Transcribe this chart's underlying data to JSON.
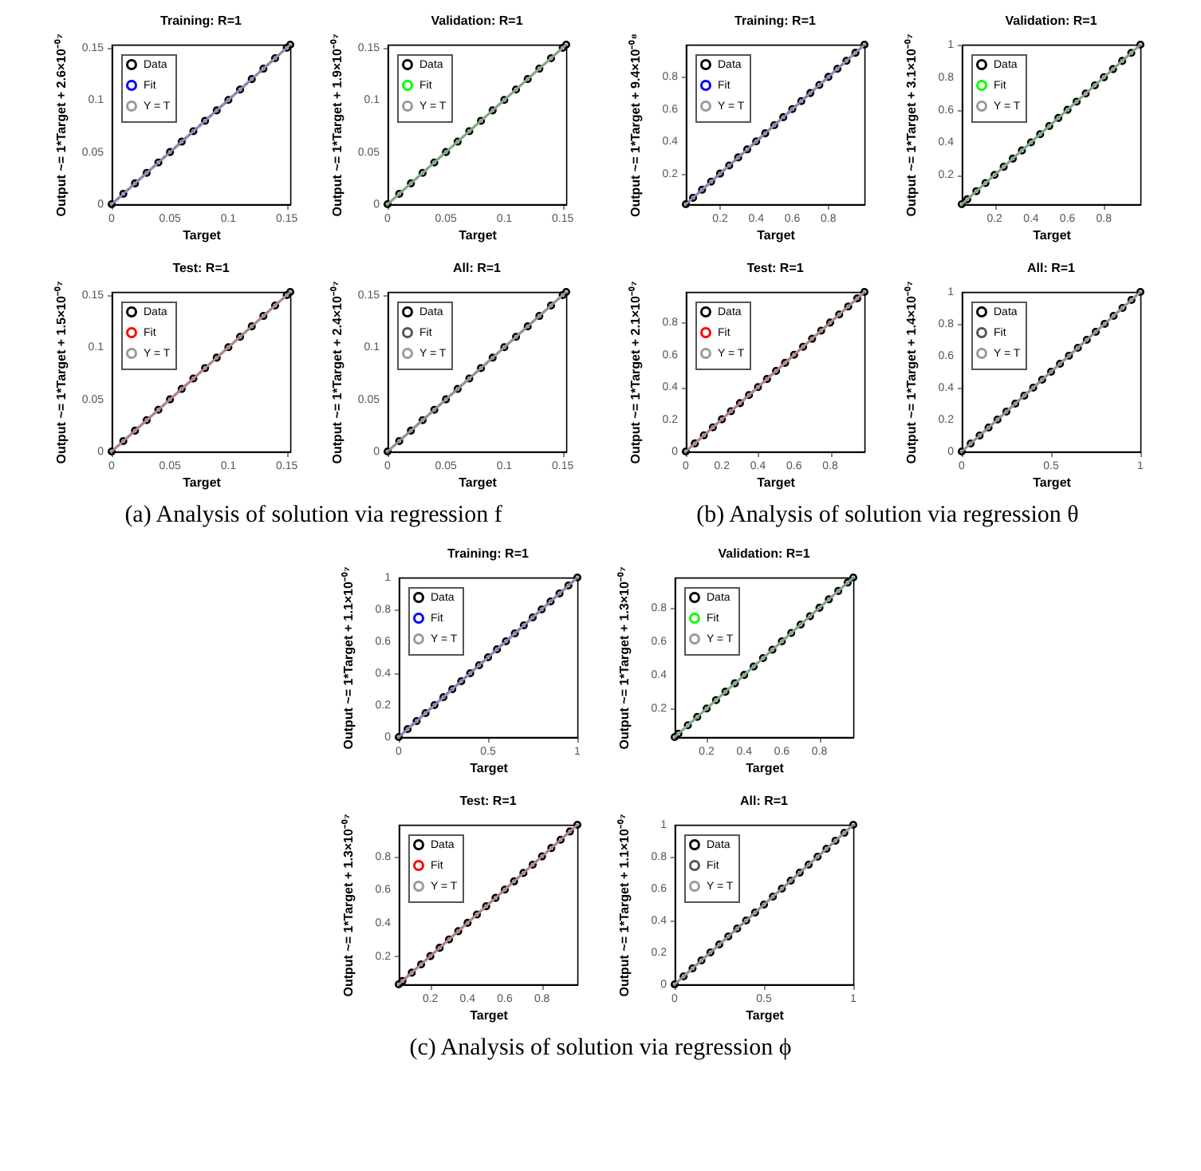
{
  "chart_data": [
    {
      "type": "scatter",
      "title": "Training: R=1",
      "xlabel": "Target",
      "ylabel": "Output ~= 1*Target + 2.6×10⁻⁰⁷",
      "xlim": [
        0,
        0.153
      ],
      "ylim": [
        0,
        0.153
      ],
      "xticks": [
        0,
        0.05,
        0.1,
        0.15
      ],
      "yticks": [
        0,
        0.05,
        0.1,
        0.15
      ],
      "legend": "top left",
      "annotations": [
        "(a) Analysis of solution via regression f"
      ],
      "series": [
        {
          "name": "Data",
          "marker": "circle",
          "color": "#000000",
          "x": [
            0,
            0.01,
            0.02,
            0.03,
            0.04,
            0.05,
            0.06,
            0.07,
            0.08,
            0.09,
            0.1,
            0.11,
            0.12,
            0.13,
            0.14,
            0.15,
            0.153
          ],
          "values": [
            0,
            0.01,
            0.02,
            0.03,
            0.04,
            0.05,
            0.06,
            0.07,
            0.08,
            0.09,
            0.1,
            0.11,
            0.12,
            0.13,
            0.14,
            0.15,
            0.153
          ]
        },
        {
          "name": "Fit",
          "type": "line",
          "color": "#0000ff",
          "x": [
            0,
            0.153
          ],
          "values": [
            0,
            0.153
          ]
        },
        {
          "name": "Y = T",
          "type": "line",
          "line_style": "dotted",
          "color": "#999999",
          "x": [
            0,
            0.153
          ],
          "values": [
            0,
            0.153
          ]
        }
      ]
    },
    {
      "type": "scatter",
      "title": "Validation: R=1",
      "xlabel": "Target",
      "ylabel": "Output ~= 1*Target + 1.9×10⁻⁰⁷",
      "xlim": [
        0,
        0.153
      ],
      "ylim": [
        0,
        0.153
      ],
      "xticks": [
        0,
        0.05,
        0.1,
        0.15
      ],
      "yticks": [
        0,
        0.05,
        0.1,
        0.15
      ],
      "legend": "top left",
      "series": [
        {
          "name": "Data",
          "marker": "circle",
          "color": "#000000",
          "x": [
            0,
            0.01,
            0.02,
            0.03,
            0.04,
            0.05,
            0.06,
            0.07,
            0.08,
            0.09,
            0.1,
            0.11,
            0.12,
            0.13,
            0.14,
            0.15,
            0.153
          ],
          "values": [
            0,
            0.01,
            0.02,
            0.03,
            0.04,
            0.05,
            0.06,
            0.07,
            0.08,
            0.09,
            0.1,
            0.11,
            0.12,
            0.13,
            0.14,
            0.15,
            0.153
          ]
        },
        {
          "name": "Fit",
          "type": "line",
          "color": "#00ff00",
          "x": [
            0,
            0.153
          ],
          "values": [
            0,
            0.153
          ]
        },
        {
          "name": "Y = T",
          "type": "line",
          "line_style": "dotted",
          "color": "#999999",
          "x": [
            0,
            0.153
          ],
          "values": [
            0,
            0.153
          ]
        }
      ]
    },
    {
      "type": "scatter",
      "title": "Test: R=1",
      "xlabel": "Target",
      "ylabel": "Output ~= 1*Target + 1.5×10⁻⁰⁷",
      "xlim": [
        0,
        0.153
      ],
      "ylim": [
        0,
        0.153
      ],
      "xticks": [
        0,
        0.05,
        0.1,
        0.15
      ],
      "yticks": [
        0,
        0.05,
        0.1,
        0.15
      ],
      "legend": "top left",
      "series": [
        {
          "name": "Data",
          "marker": "circle",
          "color": "#000000",
          "x": [
            0,
            0.01,
            0.02,
            0.03,
            0.04,
            0.05,
            0.06,
            0.07,
            0.08,
            0.09,
            0.1,
            0.11,
            0.12,
            0.13,
            0.14,
            0.15,
            0.153
          ],
          "values": [
            0,
            0.01,
            0.02,
            0.03,
            0.04,
            0.05,
            0.06,
            0.07,
            0.08,
            0.09,
            0.1,
            0.11,
            0.12,
            0.13,
            0.14,
            0.15,
            0.153
          ]
        },
        {
          "name": "Fit",
          "type": "line",
          "color": "#ff0000",
          "x": [
            0,
            0.153
          ],
          "values": [
            0,
            0.153
          ]
        },
        {
          "name": "Y = T",
          "type": "line",
          "line_style": "dotted",
          "color": "#999999",
          "x": [
            0,
            0.153
          ],
          "values": [
            0,
            0.153
          ]
        }
      ]
    },
    {
      "type": "scatter",
      "title": "All: R=1",
      "xlabel": "Target",
      "ylabel": "Output ~= 1*Target + 2.4×10⁻⁰⁷",
      "xlim": [
        0,
        0.153
      ],
      "ylim": [
        0,
        0.153
      ],
      "xticks": [
        0,
        0.05,
        0.1,
        0.15
      ],
      "yticks": [
        0,
        0.05,
        0.1,
        0.15
      ],
      "legend": "top left",
      "series": [
        {
          "name": "Data",
          "marker": "circle",
          "color": "#000000",
          "x": [
            0,
            0.01,
            0.02,
            0.03,
            0.04,
            0.05,
            0.06,
            0.07,
            0.08,
            0.09,
            0.1,
            0.11,
            0.12,
            0.13,
            0.14,
            0.15,
            0.153
          ],
          "values": [
            0,
            0.01,
            0.02,
            0.03,
            0.04,
            0.05,
            0.06,
            0.07,
            0.08,
            0.09,
            0.1,
            0.11,
            0.12,
            0.13,
            0.14,
            0.15,
            0.153
          ]
        },
        {
          "name": "Fit",
          "type": "line",
          "color": "#555555",
          "x": [
            0,
            0.153
          ],
          "values": [
            0,
            0.153
          ]
        },
        {
          "name": "Y = T",
          "type": "line",
          "line_style": "dotted",
          "color": "#999999",
          "x": [
            0,
            0.153
          ],
          "values": [
            0,
            0.153
          ]
        }
      ]
    },
    {
      "type": "scatter",
      "title": "Training: R=1",
      "xlabel": "Target",
      "ylabel": "Output ~= 1*Target + 9.4×10⁻⁰⁸",
      "xlim": [
        0.01,
        1
      ],
      "ylim": [
        0.01,
        1
      ],
      "xticks": [
        0.2,
        0.4,
        0.6,
        0.8
      ],
      "yticks": [
        0.2,
        0.4,
        0.6,
        0.8
      ],
      "legend": "top left",
      "annotations": [
        "(b) Analysis of solution via regression θ"
      ],
      "series": [
        {
          "name": "Data",
          "marker": "circle",
          "color": "#000000",
          "x": [
            0.01,
            0.05,
            0.1,
            0.15,
            0.2,
            0.25,
            0.3,
            0.35,
            0.4,
            0.45,
            0.5,
            0.55,
            0.6,
            0.65,
            0.7,
            0.75,
            0.8,
            0.85,
            0.9,
            0.95,
            1
          ],
          "values": [
            0.01,
            0.05,
            0.1,
            0.15,
            0.2,
            0.25,
            0.3,
            0.35,
            0.4,
            0.45,
            0.5,
            0.55,
            0.6,
            0.65,
            0.7,
            0.75,
            0.8,
            0.85,
            0.9,
            0.95,
            1
          ]
        },
        {
          "name": "Fit",
          "type": "line",
          "color": "#0000ff",
          "x": [
            0.01,
            1
          ],
          "values": [
            0.01,
            1
          ]
        },
        {
          "name": "Y = T",
          "type": "line",
          "line_style": "dotted",
          "color": "#999999",
          "x": [
            0.01,
            1
          ],
          "values": [
            0.01,
            1
          ]
        }
      ]
    },
    {
      "type": "scatter",
      "title": "Validation: R=1",
      "xlabel": "Target",
      "ylabel": "Output ~= 1*Target + 3.1×10⁻⁰⁷",
      "xlim": [
        0.02,
        1
      ],
      "ylim": [
        0.02,
        1
      ],
      "xticks": [
        0.2,
        0.4,
        0.6,
        0.8
      ],
      "yticks": [
        0.2,
        0.4,
        0.6,
        0.8,
        1
      ],
      "legend": "top left",
      "series": [
        {
          "name": "Data",
          "marker": "circle",
          "color": "#000000",
          "x": [
            0.02,
            0.05,
            0.1,
            0.15,
            0.2,
            0.25,
            0.3,
            0.35,
            0.4,
            0.45,
            0.5,
            0.55,
            0.6,
            0.65,
            0.7,
            0.75,
            0.8,
            0.85,
            0.9,
            0.95,
            1
          ],
          "values": [
            0.02,
            0.05,
            0.1,
            0.15,
            0.2,
            0.25,
            0.3,
            0.35,
            0.4,
            0.45,
            0.5,
            0.55,
            0.6,
            0.65,
            0.7,
            0.75,
            0.8,
            0.85,
            0.9,
            0.95,
            1
          ]
        },
        {
          "name": "Fit",
          "type": "line",
          "color": "#00ff00",
          "x": [
            0.02,
            1
          ],
          "values": [
            0.02,
            1
          ]
        },
        {
          "name": "Y = T",
          "type": "line",
          "line_style": "dotted",
          "color": "#999999",
          "x": [
            0.02,
            1
          ],
          "values": [
            0.02,
            1
          ]
        }
      ]
    },
    {
      "type": "scatter",
      "title": "Test: R=1",
      "xlabel": "Target",
      "ylabel": "Output ~= 1*Target + 2.1×10⁻⁰⁷",
      "xlim": [
        0,
        0.99
      ],
      "ylim": [
        0,
        0.99
      ],
      "xticks": [
        0,
        0.2,
        0.4,
        0.6,
        0.8
      ],
      "yticks": [
        0,
        0.2,
        0.4,
        0.6,
        0.8
      ],
      "legend": "top left",
      "series": [
        {
          "name": "Data",
          "marker": "circle",
          "color": "#000000",
          "x": [
            0,
            0.05,
            0.1,
            0.15,
            0.2,
            0.25,
            0.3,
            0.35,
            0.4,
            0.45,
            0.5,
            0.55,
            0.6,
            0.65,
            0.7,
            0.75,
            0.8,
            0.85,
            0.9,
            0.95,
            0.99
          ],
          "values": [
            0,
            0.05,
            0.1,
            0.15,
            0.2,
            0.25,
            0.3,
            0.35,
            0.4,
            0.45,
            0.5,
            0.55,
            0.6,
            0.65,
            0.7,
            0.75,
            0.8,
            0.85,
            0.9,
            0.95,
            0.99
          ]
        },
        {
          "name": "Fit",
          "type": "line",
          "color": "#ff0000",
          "x": [
            0,
            0.99
          ],
          "values": [
            0,
            0.99
          ]
        },
        {
          "name": "Y = T",
          "type": "line",
          "line_style": "dotted",
          "color": "#999999",
          "x": [
            0,
            0.99
          ],
          "values": [
            0,
            0.99
          ]
        }
      ]
    },
    {
      "type": "scatter",
      "title": "All: R=1",
      "xlabel": "Target",
      "ylabel": "Output ~= 1*Target + 1.4×10⁻⁰⁷",
      "xlim": [
        0,
        1
      ],
      "ylim": [
        0,
        1
      ],
      "xticks": [
        0,
        0.5,
        1
      ],
      "yticks": [
        0,
        0.2,
        0.4,
        0.6,
        0.8,
        1
      ],
      "legend": "top left",
      "series": [
        {
          "name": "Data",
          "marker": "circle",
          "color": "#000000",
          "x": [
            0,
            0.05,
            0.1,
            0.15,
            0.2,
            0.25,
            0.3,
            0.35,
            0.4,
            0.45,
            0.5,
            0.55,
            0.6,
            0.65,
            0.7,
            0.75,
            0.8,
            0.85,
            0.9,
            0.95,
            1
          ],
          "values": [
            0,
            0.05,
            0.1,
            0.15,
            0.2,
            0.25,
            0.3,
            0.35,
            0.4,
            0.45,
            0.5,
            0.55,
            0.6,
            0.65,
            0.7,
            0.75,
            0.8,
            0.85,
            0.9,
            0.95,
            1
          ]
        },
        {
          "name": "Fit",
          "type": "line",
          "color": "#555555",
          "x": [
            0,
            1
          ],
          "values": [
            0,
            1
          ]
        },
        {
          "name": "Y = T",
          "type": "line",
          "line_style": "dotted",
          "color": "#999999",
          "x": [
            0,
            1
          ],
          "values": [
            0,
            1
          ]
        }
      ]
    },
    {
      "type": "scatter",
      "title": "Training: R=1",
      "xlabel": "Target",
      "ylabel": "Output ~= 1*Target + 1.1×10⁻⁰⁷",
      "xlim": [
        0,
        1
      ],
      "ylim": [
        0,
        1
      ],
      "xticks": [
        0,
        0.5,
        1
      ],
      "yticks": [
        0,
        0.2,
        0.4,
        0.6,
        0.8,
        1
      ],
      "legend": "top left",
      "annotations": [
        "(c) Analysis of solution via regression ϕ"
      ],
      "series": [
        {
          "name": "Data",
          "marker": "circle",
          "color": "#000000",
          "x": [
            0,
            0.05,
            0.1,
            0.15,
            0.2,
            0.25,
            0.3,
            0.35,
            0.4,
            0.45,
            0.5,
            0.55,
            0.6,
            0.65,
            0.7,
            0.75,
            0.8,
            0.85,
            0.9,
            0.95,
            1
          ],
          "values": [
            0,
            0.05,
            0.1,
            0.15,
            0.2,
            0.25,
            0.3,
            0.35,
            0.4,
            0.45,
            0.5,
            0.55,
            0.6,
            0.65,
            0.7,
            0.75,
            0.8,
            0.85,
            0.9,
            0.95,
            1
          ]
        },
        {
          "name": "Fit",
          "type": "line",
          "color": "#0000ff",
          "x": [
            0,
            1
          ],
          "values": [
            0,
            1
          ]
        },
        {
          "name": "Y = T",
          "type": "line",
          "line_style": "dotted",
          "color": "#999999",
          "x": [
            0,
            1
          ],
          "values": [
            0,
            1
          ]
        }
      ]
    },
    {
      "type": "scatter",
      "title": "Validation: R=1",
      "xlabel": "Target",
      "ylabel": "Output ~= 1*Target + 1.3×10⁻⁰⁷",
      "xlim": [
        0.03,
        0.98
      ],
      "ylim": [
        0.03,
        0.98
      ],
      "xticks": [
        0.2,
        0.4,
        0.6,
        0.8
      ],
      "yticks": [
        0.2,
        0.4,
        0.6,
        0.8
      ],
      "legend": "top left",
      "series": [
        {
          "name": "Data",
          "marker": "circle",
          "color": "#000000",
          "x": [
            0.03,
            0.05,
            0.1,
            0.15,
            0.2,
            0.25,
            0.3,
            0.35,
            0.4,
            0.45,
            0.5,
            0.55,
            0.6,
            0.65,
            0.7,
            0.75,
            0.8,
            0.85,
            0.9,
            0.95,
            0.98
          ],
          "values": [
            0.03,
            0.05,
            0.1,
            0.15,
            0.2,
            0.25,
            0.3,
            0.35,
            0.4,
            0.45,
            0.5,
            0.55,
            0.6,
            0.65,
            0.7,
            0.75,
            0.8,
            0.85,
            0.9,
            0.95,
            0.98
          ]
        },
        {
          "name": "Fit",
          "type": "line",
          "color": "#00ff00",
          "x": [
            0.03,
            0.98
          ],
          "values": [
            0.03,
            0.98
          ]
        },
        {
          "name": "Y = T",
          "type": "line",
          "line_style": "dotted",
          "color": "#999999",
          "x": [
            0.03,
            0.98
          ],
          "values": [
            0.03,
            0.98
          ]
        }
      ]
    },
    {
      "type": "scatter",
      "title": "Test: R=1",
      "xlabel": "Target",
      "ylabel": "Output ~= 1*Target + 1.3×10⁻⁰⁷",
      "xlim": [
        0.03,
        0.99
      ],
      "ylim": [
        0.03,
        0.99
      ],
      "xticks": [
        0.2,
        0.4,
        0.6,
        0.8
      ],
      "yticks": [
        0.2,
        0.4,
        0.6,
        0.8
      ],
      "legend": "top left",
      "series": [
        {
          "name": "Data",
          "marker": "circle",
          "color": "#000000",
          "x": [
            0.03,
            0.05,
            0.1,
            0.15,
            0.2,
            0.25,
            0.3,
            0.35,
            0.4,
            0.45,
            0.5,
            0.55,
            0.6,
            0.65,
            0.7,
            0.75,
            0.8,
            0.85,
            0.9,
            0.95,
            0.99
          ],
          "values": [
            0.03,
            0.05,
            0.1,
            0.15,
            0.2,
            0.25,
            0.3,
            0.35,
            0.4,
            0.45,
            0.5,
            0.55,
            0.6,
            0.65,
            0.7,
            0.75,
            0.8,
            0.85,
            0.9,
            0.95,
            0.99
          ]
        },
        {
          "name": "Fit",
          "type": "line",
          "color": "#ff0000",
          "x": [
            0.03,
            0.99
          ],
          "values": [
            0.03,
            0.99
          ]
        },
        {
          "name": "Y = T",
          "type": "line",
          "line_style": "dotted",
          "color": "#999999",
          "x": [
            0.03,
            0.99
          ],
          "values": [
            0.03,
            0.99
          ]
        }
      ]
    },
    {
      "type": "scatter",
      "title": "All: R=1",
      "xlabel": "Target",
      "ylabel": "Output ~= 1*Target + 1.1×10⁻⁰⁷",
      "xlim": [
        0,
        1
      ],
      "ylim": [
        0,
        1
      ],
      "xticks": [
        0,
        0.5,
        1
      ],
      "yticks": [
        0,
        0.2,
        0.4,
        0.6,
        0.8,
        1
      ],
      "legend": "top left",
      "series": [
        {
          "name": "Data",
          "marker": "circle",
          "color": "#000000",
          "x": [
            0,
            0.05,
            0.1,
            0.15,
            0.2,
            0.25,
            0.3,
            0.35,
            0.4,
            0.45,
            0.5,
            0.55,
            0.6,
            0.65,
            0.7,
            0.75,
            0.8,
            0.85,
            0.9,
            0.95,
            1
          ],
          "values": [
            0,
            0.05,
            0.1,
            0.15,
            0.2,
            0.25,
            0.3,
            0.35,
            0.4,
            0.45,
            0.5,
            0.55,
            0.6,
            0.65,
            0.7,
            0.75,
            0.8,
            0.85,
            0.9,
            0.95,
            1
          ]
        },
        {
          "name": "Fit",
          "type": "line",
          "color": "#555555",
          "x": [
            0,
            1
          ],
          "values": [
            0,
            1
          ]
        },
        {
          "name": "Y = T",
          "type": "line",
          "line_style": "dotted",
          "color": "#999999",
          "x": [
            0,
            1
          ],
          "values": [
            0,
            1
          ]
        }
      ]
    }
  ]
}
